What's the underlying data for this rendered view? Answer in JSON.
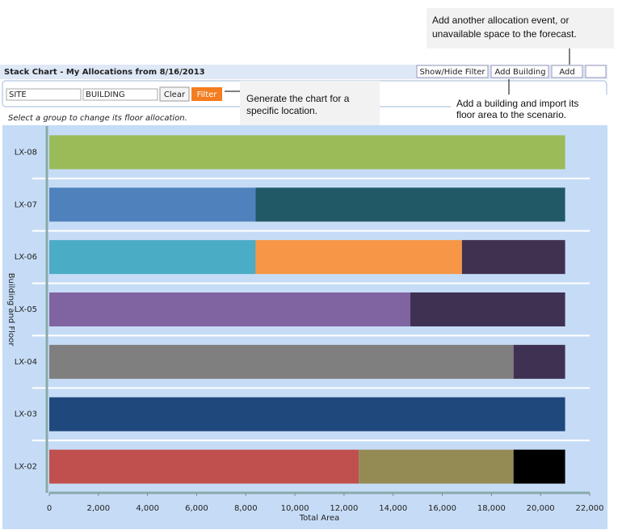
{
  "header": {
    "title": "Stack Chart - My Allocations from 8/16/2013",
    "buttons": [
      "Show/Hide Filter",
      "Add Building",
      "Add"
    ]
  },
  "filter": {
    "site": "SITE",
    "building": "BUILDING",
    "clear": "Clear",
    "apply": "Filter"
  },
  "hint": "Select a group to change its floor allocation.",
  "callouts": [
    {
      "lines": [
        "Add another allocation event, or",
        "unavailable space to the forecast."
      ]
    },
    {
      "lines": [
        "Generate the chart for a",
        "specific location."
      ]
    },
    {
      "lines": [
        "Add a building and import its",
        "floor area to the scenario."
      ]
    }
  ],
  "chart_data": {
    "type": "stacked-bar-horizontal",
    "x_label": "Total Area",
    "y_label": "Building and Floor",
    "xlim": [
      0,
      22000
    ],
    "xticks": [
      0,
      {
        "value": 2000,
        "label": "2,000"
      },
      {
        "value": 4000,
        "label": "4,000"
      },
      {
        "value": 6000,
        "label": "6,000"
      },
      {
        "value": 8000,
        "label": "8,000"
      },
      {
        "value": 10000,
        "label": "10,000"
      },
      {
        "value": 12000,
        "label": "12,000"
      },
      {
        "value": 14000,
        "label": "14,000"
      },
      {
        "value": 16000,
        "label": "16,000"
      },
      {
        "value": 18000,
        "label": "18,000"
      },
      {
        "value": 20000,
        "label": "20,000"
      },
      {
        "value": 22000,
        "label": "22,000"
      }
    ],
    "bars": [
      {
        "category": "LX-08",
        "segments": [
          {
            "value": 21000,
            "color": "#9bbb59"
          }
        ]
      },
      {
        "category": "LX-07",
        "segments": [
          {
            "value": 8400,
            "color": "#4f81bd"
          },
          {
            "value": 12600,
            "color": "#215967"
          }
        ]
      },
      {
        "category": "LX-06",
        "segments": [
          {
            "value": 8400,
            "color": "#4bacc6"
          },
          {
            "value": 8400,
            "color": "#f79646"
          },
          {
            "value": 4200,
            "color": "#403151"
          }
        ]
      },
      {
        "category": "LX-05",
        "segments": [
          {
            "value": 14700,
            "color": "#8064a2"
          },
          {
            "value": 6300,
            "color": "#3f3151"
          }
        ]
      },
      {
        "category": "LX-04",
        "segments": [
          {
            "value": 18900,
            "color": "#7f7f7f"
          },
          {
            "value": 2100,
            "color": "#3f3151"
          }
        ]
      },
      {
        "category": "LX-03",
        "segments": [
          {
            "value": 21000,
            "color": "#1f497d"
          }
        ]
      },
      {
        "category": "LX-02",
        "segments": [
          {
            "value": 12600,
            "color": "#c0504d"
          },
          {
            "value": 6300,
            "color": "#948a54"
          },
          {
            "value": 2100,
            "color": "#000000"
          }
        ]
      }
    ]
  }
}
